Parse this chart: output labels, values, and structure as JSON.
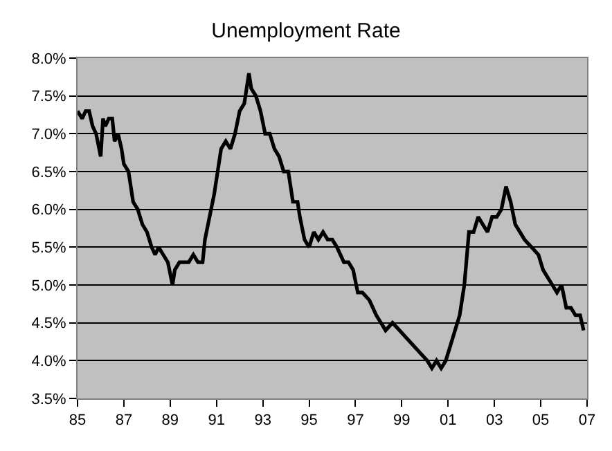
{
  "chart_data": {
    "type": "line",
    "title": "Unemployment Rate",
    "x": [
      1985.0,
      1985.2,
      1985.35,
      1985.5,
      1985.65,
      1985.8,
      1986.0,
      1986.1,
      1986.2,
      1986.35,
      1986.5,
      1986.6,
      1986.75,
      1986.9,
      1987.0,
      1987.2,
      1987.4,
      1987.6,
      1987.8,
      1988.0,
      1988.2,
      1988.35,
      1988.5,
      1988.7,
      1988.9,
      1989.1,
      1989.2,
      1989.4,
      1989.6,
      1989.8,
      1990.0,
      1990.2,
      1990.4,
      1990.5,
      1990.7,
      1990.9,
      1991.0,
      1991.2,
      1991.4,
      1991.6,
      1991.8,
      1992.0,
      1992.2,
      1992.4,
      1992.5,
      1992.7,
      1992.9,
      1993.1,
      1993.3,
      1993.5,
      1993.7,
      1993.9,
      1994.1,
      1994.3,
      1994.5,
      1994.6,
      1994.8,
      1995.0,
      1995.2,
      1995.4,
      1995.6,
      1995.8,
      1996.0,
      1996.2,
      1996.5,
      1996.7,
      1996.9,
      1997.1,
      1997.3,
      1997.6,
      1997.9,
      1998.1,
      1998.3,
      1998.6,
      1998.9,
      1999.2,
      1999.5,
      1999.8,
      2000.1,
      2000.3,
      2000.5,
      2000.7,
      2000.9,
      2001.1,
      2001.3,
      2001.5,
      2001.7,
      2001.9,
      2002.1,
      2002.3,
      2002.5,
      2002.7,
      2002.9,
      2003.1,
      2003.3,
      2003.5,
      2003.7,
      2003.9,
      2004.1,
      2004.3,
      2004.6,
      2004.9,
      2005.1,
      2005.3,
      2005.5,
      2005.7,
      2005.9,
      2006.1,
      2006.3,
      2006.5,
      2006.7,
      2006.85
    ],
    "values": [
      7.3,
      7.2,
      7.3,
      7.3,
      7.1,
      7.0,
      6.7,
      7.2,
      7.1,
      7.2,
      7.2,
      6.9,
      7.0,
      6.8,
      6.6,
      6.5,
      6.1,
      6.0,
      5.8,
      5.7,
      5.5,
      5.4,
      5.5,
      5.4,
      5.3,
      5.0,
      5.2,
      5.3,
      5.3,
      5.3,
      5.4,
      5.3,
      5.3,
      5.6,
      5.9,
      6.2,
      6.4,
      6.8,
      6.9,
      6.8,
      7.0,
      7.3,
      7.4,
      7.8,
      7.6,
      7.5,
      7.3,
      7.0,
      7.0,
      6.8,
      6.7,
      6.5,
      6.5,
      6.1,
      6.1,
      5.9,
      5.6,
      5.5,
      5.7,
      5.6,
      5.7,
      5.6,
      5.6,
      5.5,
      5.3,
      5.3,
      5.2,
      4.9,
      4.9,
      4.8,
      4.6,
      4.5,
      4.4,
      4.5,
      4.4,
      4.3,
      4.2,
      4.1,
      4.0,
      3.9,
      4.0,
      3.9,
      4.0,
      4.2,
      4.4,
      4.6,
      5.0,
      5.7,
      5.7,
      5.9,
      5.8,
      5.7,
      5.9,
      5.9,
      6.0,
      6.3,
      6.1,
      5.8,
      5.7,
      5.6,
      5.5,
      5.4,
      5.2,
      5.1,
      5.0,
      4.9,
      5.0,
      4.7,
      4.7,
      4.6,
      4.6,
      4.4
    ],
    "color": "#000000",
    "xlim": [
      1985,
      2007
    ],
    "xticks": [
      {
        "value": 1985,
        "label": "85"
      },
      {
        "value": 1987,
        "label": "87"
      },
      {
        "value": 1989,
        "label": "89"
      },
      {
        "value": 1991,
        "label": "91"
      },
      {
        "value": 1993,
        "label": "93"
      },
      {
        "value": 1995,
        "label": "95"
      },
      {
        "value": 1997,
        "label": "97"
      },
      {
        "value": 1999,
        "label": "99"
      },
      {
        "value": 2001,
        "label": "01"
      },
      {
        "value": 2003,
        "label": "03"
      },
      {
        "value": 2005,
        "label": "05"
      },
      {
        "value": 2007,
        "label": "07"
      }
    ],
    "ylim": [
      3.5,
      8.0
    ],
    "yticks": [
      {
        "value": 3.5,
        "label": "3.5%"
      },
      {
        "value": 4.0,
        "label": "4.0%"
      },
      {
        "value": 4.5,
        "label": "4.5%"
      },
      {
        "value": 5.0,
        "label": "5.0%"
      },
      {
        "value": 5.5,
        "label": "5.5%"
      },
      {
        "value": 6.0,
        "label": "6.0%"
      },
      {
        "value": 6.5,
        "label": "6.5%"
      },
      {
        "value": 7.0,
        "label": "7.0%"
      },
      {
        "value": 7.5,
        "label": "7.5%"
      },
      {
        "value": 8.0,
        "label": "8.0%"
      }
    ],
    "grid": "y",
    "marker": "none",
    "line_style": "solid"
  }
}
